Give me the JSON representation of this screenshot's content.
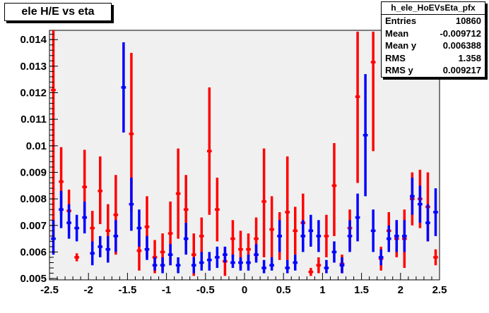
{
  "title": "ele H/E vs eta",
  "stats": {
    "name": "h_ele_HoEVsEta_pfx",
    "rows": [
      {
        "label": "Entries",
        "value": "10860"
      },
      {
        "label": "Mean",
        "value": "-0.009712"
      },
      {
        "label": "Mean y",
        "value": "0.006388"
      },
      {
        "label": "RMS",
        "value": "1.358"
      },
      {
        "label": "RMS y",
        "value": "0.009217"
      }
    ]
  },
  "colors": {
    "series_red": "#ff0000",
    "series_blue": "#0000ff",
    "frame_bg": "#f0f0f0"
  },
  "chart_data": {
    "type": "scatter",
    "title": "ele H/E vs eta",
    "xlabel": "",
    "ylabel": "",
    "xlim": [
      -2.5,
      2.5
    ],
    "ylim": [
      0.00495,
      0.01435
    ],
    "x_ticks": [
      "-2.5",
      "-2",
      "-1.5",
      "-1",
      "-0.5",
      "0",
      "0.5",
      "1",
      "1.5",
      "2",
      "2.5"
    ],
    "y_ticks": [
      "0.005",
      "0.006",
      "0.007",
      "0.008",
      "0.009",
      "0.01",
      "0.011",
      "0.012",
      "0.013",
      "0.014"
    ],
    "x_half_width": 0.05,
    "series": [
      {
        "color": "red",
        "points": [
          {
            "x": -2.45,
            "y": 0.0121,
            "lo": 0.0065,
            "hi": 0.0144
          },
          {
            "x": -2.35,
            "y": 0.00865,
            "lo": 0.0074,
            "hi": 0.00995
          },
          {
            "x": -2.25,
            "y": 0.00755,
            "lo": 0.0068,
            "hi": 0.00835
          },
          {
            "x": -2.15,
            "y": 0.0058,
            "lo": 0.00565,
            "hi": 0.00595
          },
          {
            "x": -2.05,
            "y": 0.00845,
            "lo": 0.0071,
            "hi": 0.00985
          },
          {
            "x": -1.95,
            "y": 0.0069,
            "lo": 0.0063,
            "hi": 0.00755
          },
          {
            "x": -1.85,
            "y": 0.0083,
            "lo": 0.00705,
            "hi": 0.0096
          },
          {
            "x": -1.75,
            "y": 0.0068,
            "lo": 0.0059,
            "hi": 0.0078
          },
          {
            "x": -1.65,
            "y": 0.0074,
            "lo": 0.0059,
            "hi": 0.0089
          },
          {
            "x": -1.45,
            "y": 0.01045,
            "lo": 0.0075,
            "hi": 0.0135
          },
          {
            "x": -1.35,
            "y": 0.00605,
            "lo": 0.0053,
            "hi": 0.0068
          },
          {
            "x": -1.25,
            "y": 0.00695,
            "lo": 0.0058,
            "hi": 0.0081
          },
          {
            "x": -1.15,
            "y": 0.0058,
            "lo": 0.0052,
            "hi": 0.00645
          },
          {
            "x": -1.05,
            "y": 0.006,
            "lo": 0.0053,
            "hi": 0.0067
          },
          {
            "x": -0.95,
            "y": 0.0067,
            "lo": 0.0055,
            "hi": 0.0079
          },
          {
            "x": -0.85,
            "y": 0.0082,
            "lo": 0.0065,
            "hi": 0.0099
          },
          {
            "x": -0.75,
            "y": 0.0076,
            "lo": 0.0063,
            "hi": 0.0089
          },
          {
            "x": -0.65,
            "y": 0.0059,
            "lo": 0.0051,
            "hi": 0.0067
          },
          {
            "x": -0.55,
            "y": 0.0066,
            "lo": 0.0059,
            "hi": 0.0073
          },
          {
            "x": -0.45,
            "y": 0.0098,
            "lo": 0.0074,
            "hi": 0.0122
          },
          {
            "x": -0.35,
            "y": 0.0076,
            "lo": 0.0064,
            "hi": 0.0088
          },
          {
            "x": -0.25,
            "y": 0.00565,
            "lo": 0.0051,
            "hi": 0.0062
          },
          {
            "x": -0.15,
            "y": 0.0065,
            "lo": 0.0058,
            "hi": 0.0072
          },
          {
            "x": -0.05,
            "y": 0.0061,
            "lo": 0.0054,
            "hi": 0.0068
          },
          {
            "x": 0.05,
            "y": 0.0061,
            "lo": 0.0055,
            "hi": 0.0067
          },
          {
            "x": 0.15,
            "y": 0.0065,
            "lo": 0.0057,
            "hi": 0.0073
          },
          {
            "x": 0.25,
            "y": 0.0079,
            "lo": 0.0058,
            "hi": 0.0099
          },
          {
            "x": 0.35,
            "y": 0.00685,
            "lo": 0.0058,
            "hi": 0.0081
          },
          {
            "x": 0.45,
            "y": 0.0066,
            "lo": 0.0057,
            "hi": 0.0075
          },
          {
            "x": 0.55,
            "y": 0.0075,
            "lo": 0.0057,
            "hi": 0.0096
          },
          {
            "x": 0.65,
            "y": 0.0068,
            "lo": 0.0059,
            "hi": 0.0077
          },
          {
            "x": 0.75,
            "y": 0.0071,
            "lo": 0.0061,
            "hi": 0.0082
          },
          {
            "x": 0.85,
            "y": 0.00525,
            "lo": 0.0051,
            "hi": 0.0054
          },
          {
            "x": 0.95,
            "y": 0.0055,
            "lo": 0.0052,
            "hi": 0.0058
          },
          {
            "x": 1.05,
            "y": 0.0066,
            "lo": 0.0058,
            "hi": 0.0074
          },
          {
            "x": 1.15,
            "y": 0.0085,
            "lo": 0.0066,
            "hi": 0.0101
          },
          {
            "x": 1.25,
            "y": 0.00555,
            "lo": 0.0052,
            "hi": 0.0059
          },
          {
            "x": 1.35,
            "y": 0.0069,
            "lo": 0.0061,
            "hi": 0.0076
          },
          {
            "x": 1.45,
            "y": 0.01185,
            "lo": 0.0086,
            "hi": 0.0143
          },
          {
            "x": 1.65,
            "y": 0.01315,
            "lo": 0.0098,
            "hi": 0.0143
          },
          {
            "x": 1.75,
            "y": 0.00575,
            "lo": 0.0053,
            "hi": 0.0062
          },
          {
            "x": 1.85,
            "y": 0.0068,
            "lo": 0.0061,
            "hi": 0.0075
          },
          {
            "x": 1.95,
            "y": 0.0065,
            "lo": 0.0058,
            "hi": 0.0072
          },
          {
            "x": 2.05,
            "y": 0.0065,
            "lo": 0.0054,
            "hi": 0.0076
          },
          {
            "x": 2.15,
            "y": 0.008,
            "lo": 0.007,
            "hi": 0.009
          },
          {
            "x": 2.25,
            "y": 0.008,
            "lo": 0.0069,
            "hi": 0.0091
          },
          {
            "x": 2.35,
            "y": 0.0077,
            "lo": 0.0064,
            "hi": 0.009
          },
          {
            "x": 2.45,
            "y": 0.0058,
            "lo": 0.0055,
            "hi": 0.0061
          }
        ]
      },
      {
        "color": "blue",
        "points": [
          {
            "x": -2.45,
            "y": 0.0065,
            "lo": 0.0059,
            "hi": 0.0072
          },
          {
            "x": -2.35,
            "y": 0.0076,
            "lo": 0.0069,
            "hi": 0.0083
          },
          {
            "x": -2.25,
            "y": 0.0071,
            "lo": 0.0065,
            "hi": 0.0078
          },
          {
            "x": -2.15,
            "y": 0.0069,
            "lo": 0.0064,
            "hi": 0.0074
          },
          {
            "x": -2.05,
            "y": 0.0073,
            "lo": 0.0067,
            "hi": 0.0079
          },
          {
            "x": -1.95,
            "y": 0.00595,
            "lo": 0.0055,
            "hi": 0.0064
          },
          {
            "x": -1.85,
            "y": 0.0062,
            "lo": 0.0058,
            "hi": 0.0066
          },
          {
            "x": -1.75,
            "y": 0.0061,
            "lo": 0.0056,
            "hi": 0.0066
          },
          {
            "x": -1.65,
            "y": 0.0066,
            "lo": 0.006,
            "hi": 0.0072
          },
          {
            "x": -1.55,
            "y": 0.0122,
            "lo": 0.0105,
            "hi": 0.0139
          },
          {
            "x": -1.45,
            "y": 0.0078,
            "lo": 0.0068,
            "hi": 0.0088
          },
          {
            "x": -1.35,
            "y": 0.0069,
            "lo": 0.0062,
            "hi": 0.0076
          },
          {
            "x": -1.25,
            "y": 0.0061,
            "lo": 0.0057,
            "hi": 0.0066
          },
          {
            "x": -1.15,
            "y": 0.0055,
            "lo": 0.0053,
            "hi": 0.0058
          },
          {
            "x": -1.05,
            "y": 0.0055,
            "lo": 0.0052,
            "hi": 0.0058
          },
          {
            "x": -0.95,
            "y": 0.0059,
            "lo": 0.0055,
            "hi": 0.0063
          },
          {
            "x": -0.85,
            "y": 0.0055,
            "lo": 0.0052,
            "hi": 0.0058
          },
          {
            "x": -0.75,
            "y": 0.0065,
            "lo": 0.0059,
            "hi": 0.0071
          },
          {
            "x": -0.65,
            "y": 0.0055,
            "lo": 0.0052,
            "hi": 0.0058
          },
          {
            "x": -0.55,
            "y": 0.0056,
            "lo": 0.0053,
            "hi": 0.006
          },
          {
            "x": -0.45,
            "y": 0.0057,
            "lo": 0.0053,
            "hi": 0.006
          },
          {
            "x": -0.35,
            "y": 0.0058,
            "lo": 0.0054,
            "hi": 0.0062
          },
          {
            "x": -0.25,
            "y": 0.0059,
            "lo": 0.0056,
            "hi": 0.0062
          },
          {
            "x": -0.15,
            "y": 0.0056,
            "lo": 0.0054,
            "hi": 0.0059
          },
          {
            "x": -0.05,
            "y": 0.0056,
            "lo": 0.0053,
            "hi": 0.0058
          },
          {
            "x": 0.05,
            "y": 0.0056,
            "lo": 0.0053,
            "hi": 0.0059
          },
          {
            "x": 0.15,
            "y": 0.0059,
            "lo": 0.0056,
            "hi": 0.0063
          },
          {
            "x": 0.25,
            "y": 0.0054,
            "lo": 0.0052,
            "hi": 0.0057
          },
          {
            "x": 0.35,
            "y": 0.0055,
            "lo": 0.0053,
            "hi": 0.0058
          },
          {
            "x": 0.45,
            "y": 0.0066,
            "lo": 0.006,
            "hi": 0.0072
          },
          {
            "x": 0.55,
            "y": 0.0054,
            "lo": 0.0052,
            "hi": 0.0057
          },
          {
            "x": 0.65,
            "y": 0.0056,
            "lo": 0.0053,
            "hi": 0.0059
          },
          {
            "x": 0.75,
            "y": 0.0066,
            "lo": 0.006,
            "hi": 0.0072
          },
          {
            "x": 0.85,
            "y": 0.0068,
            "lo": 0.0062,
            "hi": 0.0074
          },
          {
            "x": 0.95,
            "y": 0.0066,
            "lo": 0.006,
            "hi": 0.0072
          },
          {
            "x": 1.05,
            "y": 0.0054,
            "lo": 0.0052,
            "hi": 0.0057
          },
          {
            "x": 1.15,
            "y": 0.006,
            "lo": 0.0056,
            "hi": 0.0064
          },
          {
            "x": 1.25,
            "y": 0.0055,
            "lo": 0.0052,
            "hi": 0.0058
          },
          {
            "x": 1.35,
            "y": 0.0066,
            "lo": 0.006,
            "hi": 0.0072
          },
          {
            "x": 1.45,
            "y": 0.0073,
            "lo": 0.0064,
            "hi": 0.0082
          },
          {
            "x": 1.55,
            "y": 0.0104,
            "lo": 0.0081,
            "hi": 0.0127
          },
          {
            "x": 1.65,
            "y": 0.0068,
            "lo": 0.006,
            "hi": 0.0076
          },
          {
            "x": 1.75,
            "y": 0.0058,
            "lo": 0.0055,
            "hi": 0.0061
          },
          {
            "x": 1.85,
            "y": 0.0065,
            "lo": 0.006,
            "hi": 0.007
          },
          {
            "x": 1.95,
            "y": 0.0066,
            "lo": 0.006,
            "hi": 0.0072
          },
          {
            "x": 2.05,
            "y": 0.0066,
            "lo": 0.006,
            "hi": 0.0072
          },
          {
            "x": 2.15,
            "y": 0.0081,
            "lo": 0.0074,
            "hi": 0.0088
          },
          {
            "x": 2.25,
            "y": 0.0078,
            "lo": 0.0071,
            "hi": 0.0085
          },
          {
            "x": 2.35,
            "y": 0.0071,
            "lo": 0.0064,
            "hi": 0.0078
          },
          {
            "x": 2.45,
            "y": 0.0075,
            "lo": 0.0066,
            "hi": 0.0084
          }
        ]
      }
    ]
  }
}
